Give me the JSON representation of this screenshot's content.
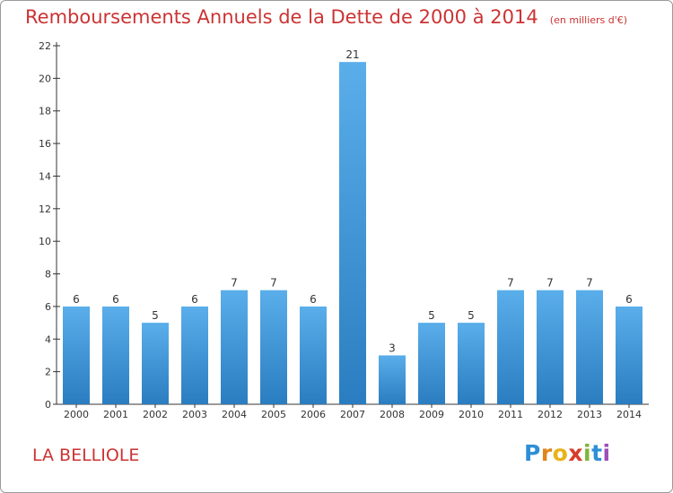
{
  "header": {
    "title": "Remboursements Annuels de la Dette de 2000 à 2014",
    "subtitle": "(en milliers d'€)"
  },
  "footer": {
    "place_name": "LA BELLIOLE",
    "logo_text": "Proxiti"
  },
  "colors": {
    "title": "#cc3333",
    "bar_light": "#5aaeea",
    "bar_dark": "#2a7dc0",
    "axis": "#333333",
    "grid": "#dddddd"
  },
  "chart_data": {
    "type": "bar",
    "title": "Remboursements Annuels de la Dette de 2000 à 2014",
    "subtitle": "(en milliers d'€)",
    "categories": [
      "2000",
      "2001",
      "2002",
      "2003",
      "2004",
      "2005",
      "2006",
      "2007",
      "2008",
      "2009",
      "2010",
      "2011",
      "2012",
      "2013",
      "2014"
    ],
    "values": [
      6,
      6,
      5,
      6,
      7,
      7,
      6,
      21,
      3,
      5,
      5,
      7,
      7,
      7,
      6
    ],
    "data_labels": [
      "6",
      "6",
      "5",
      "6",
      "7",
      "7",
      "6",
      "21",
      "3",
      "5",
      "5",
      "7",
      "7",
      "7",
      "6"
    ],
    "xlabel": "",
    "ylabel": "",
    "ylim": [
      0,
      22
    ],
    "yticks": [
      0,
      2,
      4,
      6,
      8,
      10,
      12,
      14,
      16,
      18,
      20,
      22
    ],
    "grid": false,
    "legend": "none"
  }
}
